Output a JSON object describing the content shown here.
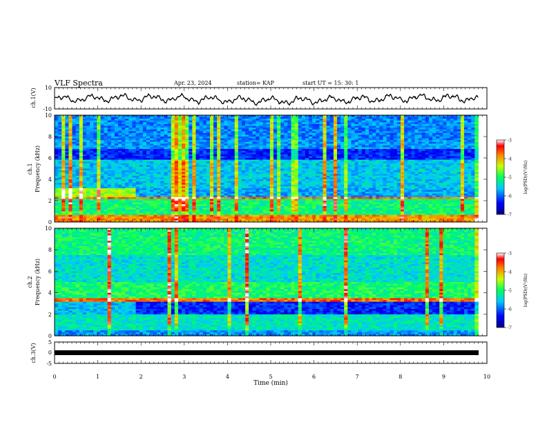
{
  "header": {
    "title": "VLF Spectra",
    "date": "Apr. 23, 2024",
    "station": "station= KAP",
    "start": "start  UT =   15: 30: 1"
  },
  "chart_data": [
    {
      "type": "line",
      "id": "ch1_waveform",
      "ylabel": "ch.1(V)",
      "xlim": [
        0,
        10
      ],
      "ylim": [
        -10,
        10
      ],
      "yticks": [
        "10",
        "-10"
      ],
      "x_end": 9.8,
      "series": [
        {
          "mean": -1,
          "amplitude": 4
        }
      ]
    },
    {
      "type": "heatmap",
      "id": "ch1_spectrogram",
      "ylabel": "ch.1\nFrequency (kHz)",
      "xlim": [
        0,
        10
      ],
      "ylim": [
        0,
        10
      ],
      "yticks": [
        "0",
        "2",
        "4",
        "6",
        "8",
        "10"
      ],
      "x_end": 9.8,
      "colorbar": {
        "label": "log(PSD)(V²/Hz)",
        "range": [
          -7,
          -3
        ],
        "ticks": [
          "-3",
          "-4",
          "-5",
          "-6",
          "-7"
        ]
      }
    },
    {
      "type": "heatmap",
      "id": "ch2_spectrogram",
      "ylabel": "ch.2\nFrequency (kHz)",
      "xlim": [
        0,
        10
      ],
      "ylim": [
        0,
        10
      ],
      "yticks": [
        "0",
        "2",
        "4",
        "6",
        "8",
        "10"
      ],
      "x_end": 9.8,
      "colorbar": {
        "label": "log(PSD)(V²/Hz)",
        "range": [
          -7,
          -3
        ],
        "ticks": [
          "-3",
          "-4",
          "-5",
          "-6",
          "-7"
        ]
      }
    },
    {
      "type": "line",
      "id": "ch3_waveform",
      "ylabel": "ch.3(V)",
      "xlim": [
        0,
        10
      ],
      "ylim": [
        -5,
        5
      ],
      "yticks": [
        "5",
        "0",
        "-5"
      ],
      "x_end": 9.8,
      "series": [
        {
          "mean": -0.5,
          "amplitude": 0.6
        }
      ]
    }
  ],
  "xaxis": {
    "label": "Time  (min)",
    "ticks": [
      "0",
      "1",
      "2",
      "3",
      "4",
      "5",
      "6",
      "7",
      "8",
      "9",
      "10"
    ]
  }
}
